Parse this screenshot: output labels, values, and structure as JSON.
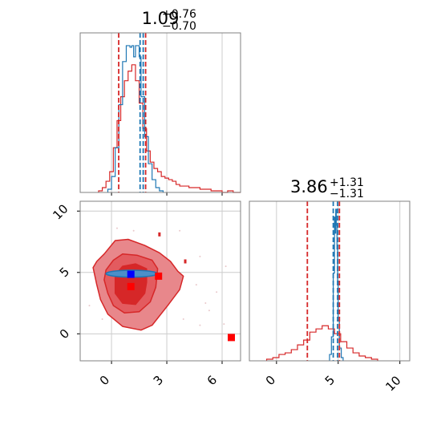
{
  "chart_data": [
    {
      "panel": "marginal-x1",
      "type": "histogram",
      "title": {
        "value": "1.09",
        "plus": "+0.76",
        "minus": "−0.70"
      },
      "xlim": [
        -1.7,
        7.0
      ],
      "grid": true,
      "series": [
        {
          "color": "#d62728",
          "bin_edges": [
            -0.7,
            -0.5,
            -0.3,
            -0.1,
            0.1,
            0.3,
            0.5,
            0.7,
            0.9,
            1.1,
            1.3,
            1.5,
            1.7,
            1.9,
            2.1,
            2.3,
            2.5,
            2.7,
            2.9,
            3.1,
            3.3,
            3.5,
            3.7,
            3.9,
            4.2,
            4.5,
            4.8,
            5.1,
            5.4,
            5.7,
            6.0,
            6.3,
            6.6,
            7.0
          ],
          "heights": [
            0.01,
            0.03,
            0.07,
            0.13,
            0.28,
            0.45,
            0.6,
            0.7,
            0.76,
            0.8,
            0.7,
            0.56,
            0.4,
            0.26,
            0.19,
            0.15,
            0.13,
            0.1,
            0.09,
            0.08,
            0.07,
            0.05,
            0.04,
            0.04,
            0.03,
            0.03,
            0.02,
            0.02,
            0.01,
            0.01,
            0.0,
            0.01,
            0.0
          ]
        },
        {
          "color": "#1f77b4",
          "bin_edges": [
            -0.2,
            0.0,
            0.2,
            0.4,
            0.6,
            0.8,
            0.9,
            1.0,
            1.1,
            1.2,
            1.3,
            1.4,
            1.5,
            1.6,
            1.8,
            2.0,
            2.2,
            2.4,
            2.6,
            2.8
          ],
          "heights": [
            0.02,
            0.1,
            0.28,
            0.55,
            0.82,
            0.92,
            0.92,
            0.91,
            0.92,
            0.85,
            0.92,
            0.92,
            0.85,
            0.6,
            0.35,
            0.18,
            0.08,
            0.03,
            0.01
          ]
        }
      ],
      "vlines": [
        {
          "x": 0.39,
          "color": "#d62728"
        },
        {
          "x": 1.85,
          "color": "#d62728"
        },
        {
          "x": 1.55,
          "color": "#1f77b4"
        },
        {
          "x": 1.72,
          "color": "#1f77b4"
        }
      ]
    },
    {
      "panel": "joint",
      "type": "contour-scatter",
      "xlim": [
        -1.7,
        7.0
      ],
      "ylim": [
        -2.2,
        10.8
      ],
      "x_ticks": [
        "0",
        "3",
        "6"
      ],
      "x_tick_values": [
        0,
        3,
        6
      ],
      "y_ticks": [
        "0",
        "5",
        "10"
      ],
      "y_tick_values": [
        0,
        5,
        10
      ],
      "grid": true,
      "contours": [
        {
          "level": 3,
          "color": "#d62728",
          "fill": "#e8878b",
          "points": [
            [
              -1.0,
              5.4
            ],
            [
              -0.8,
              5.9
            ],
            [
              -0.4,
              6.5
            ],
            [
              0.2,
              7.6
            ],
            [
              0.9,
              7.7
            ],
            [
              1.8,
              7.2
            ],
            [
              2.6,
              6.6
            ],
            [
              3.2,
              5.9
            ],
            [
              3.6,
              5.1
            ],
            [
              3.9,
              4.7
            ],
            [
              3.7,
              3.6
            ],
            [
              3.1,
              2.4
            ],
            [
              2.2,
              0.7
            ],
            [
              1.6,
              0.3
            ],
            [
              0.6,
              0.6
            ],
            [
              -0.2,
              1.6
            ],
            [
              -0.6,
              2.8
            ],
            [
              -0.8,
              4.0
            ]
          ]
        },
        {
          "level": 2,
          "color": "#d62728",
          "fill": "#e35b5f",
          "points": [
            [
              -0.3,
              5.2
            ],
            [
              0.1,
              6.0
            ],
            [
              0.6,
              6.5
            ],
            [
              1.4,
              6.4
            ],
            [
              2.2,
              6.0
            ],
            [
              2.5,
              5.3
            ],
            [
              2.4,
              3.8
            ],
            [
              2.1,
              2.6
            ],
            [
              1.5,
              1.8
            ],
            [
              0.7,
              1.7
            ],
            [
              0.1,
              2.3
            ],
            [
              -0.2,
              3.3
            ],
            [
              -0.4,
              4.4
            ]
          ]
        },
        {
          "level": 1,
          "color": "#d62728",
          "fill": "#d62728",
          "points": [
            [
              0.2,
              4.8
            ],
            [
              0.6,
              5.5
            ],
            [
              1.3,
              5.7
            ],
            [
              1.9,
              5.3
            ],
            [
              1.9,
              4.2
            ],
            [
              1.8,
              3.3
            ],
            [
              1.3,
              2.4
            ],
            [
              0.6,
              2.5
            ],
            [
              0.2,
              3.3
            ]
          ]
        }
      ],
      "blue_ellipse": {
        "cx": 1.1,
        "cy": 4.9,
        "rx": 1.4,
        "ry": 0.28,
        "color": "#1f77b4"
      },
      "scatter": [
        [
          4.8,
          0.7
        ],
        [
          5.3,
          1.9
        ],
        [
          6.1,
          0.8
        ],
        [
          5.7,
          3.4
        ],
        [
          4.6,
          4.0
        ],
        [
          6.2,
          5.5
        ],
        [
          1.2,
          8.4
        ],
        [
          0.3,
          8.6
        ],
        [
          -1.2,
          2.3
        ],
        [
          3.7,
          8.4
        ],
        [
          3.9,
          1.2
        ],
        [
          4.8,
          6.3
        ],
        [
          -0.5,
          1.2
        ],
        [
          5.1,
          2.5
        ]
      ],
      "markers": [
        {
          "x": 1.05,
          "y": 4.85,
          "color": "#0000ff"
        },
        {
          "x": 1.05,
          "y": 3.85,
          "color": "#ff0000"
        },
        {
          "x": 2.55,
          "y": 4.7,
          "color": "#ff0000"
        },
        {
          "x": 6.5,
          "y": -0.3,
          "color": "#ff0000"
        }
      ],
      "small_points": [
        {
          "x": 2.6,
          "y": 8.1,
          "color": "#d62728"
        },
        {
          "x": 4.0,
          "y": 5.9,
          "color": "#d62728"
        }
      ]
    },
    {
      "panel": "marginal-x2",
      "type": "histogram",
      "title": {
        "value": "3.86",
        "plus": "+1.31",
        "minus": "−1.31"
      },
      "xlim": [
        -2.2,
        10.8
      ],
      "x_ticks": [
        "0",
        "5",
        "10"
      ],
      "x_tick_values": [
        0,
        5,
        10
      ],
      "grid": true,
      "series": [
        {
          "color": "#d62728",
          "bin_edges": [
            -0.8,
            -0.3,
            0.2,
            0.7,
            1.2,
            1.7,
            2.2,
            2.7,
            3.2,
            3.7,
            4.2,
            4.7,
            5.2,
            5.7,
            6.2,
            6.7,
            7.2,
            7.7,
            8.2
          ],
          "heights": [
            0.01,
            0.02,
            0.04,
            0.05,
            0.07,
            0.1,
            0.13,
            0.18,
            0.2,
            0.22,
            0.2,
            0.17,
            0.12,
            0.08,
            0.05,
            0.03,
            0.02,
            0.01
          ]
        },
        {
          "color": "#1f77b4",
          "bin_edges": [
            4.3,
            4.45,
            4.6,
            4.7,
            4.75,
            4.8,
            4.85,
            4.9,
            4.95,
            5.0,
            5.1,
            5.25,
            5.4
          ],
          "heights": [
            0.04,
            0.15,
            0.55,
            0.9,
            0.8,
            0.95,
            0.85,
            0.7,
            0.5,
            0.25,
            0.08,
            0.02
          ]
        }
      ],
      "vlines": [
        {
          "x": 2.5,
          "color": "#d62728"
        },
        {
          "x": 5.1,
          "color": "#d62728"
        },
        {
          "x": 4.6,
          "color": "#1f77b4"
        },
        {
          "x": 4.95,
          "color": "#1f77b4"
        }
      ]
    }
  ]
}
